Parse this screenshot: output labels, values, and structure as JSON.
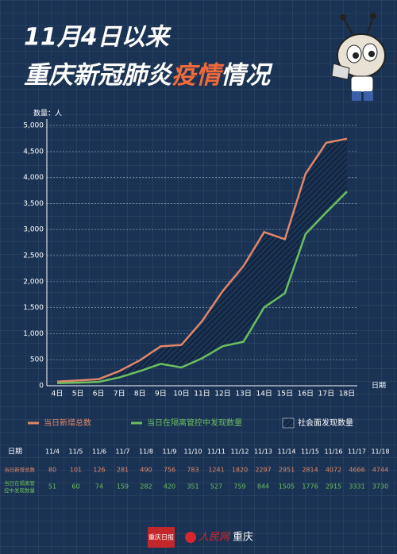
{
  "title_line1": "11月4日以来",
  "title_line2": [
    "重庆新冠肺炎",
    "疫情",
    "情况"
  ],
  "chart_data": {
    "type": "line",
    "y_label": "数量：人",
    "x_label": "日期",
    "categories": [
      "4日",
      "5日",
      "6日",
      "7日",
      "8日",
      "9日",
      "10日",
      "11日",
      "12日",
      "13日",
      "14日",
      "15日",
      "16日",
      "17日",
      "18日"
    ],
    "series": [
      {
        "name": "当日新增总数",
        "color": "#e0876a",
        "values": [
          80,
          101,
          126,
          281,
          490,
          756,
          783,
          1241,
          1820,
          2297,
          2951,
          2814,
          4072,
          4666,
          4744
        ]
      },
      {
        "name": "当日在隔离管控中发现数量",
        "color": "#6cbf5f",
        "values": [
          51,
          60,
          74,
          159,
          282,
          420,
          351,
          527,
          759,
          844,
          1505,
          1776,
          2915,
          3331,
          3730
        ]
      }
    ],
    "area_name": "社会面发现数量",
    "ylim": [
      0,
      5000
    ],
    "yticks": [
      0,
      500,
      {
        "value": 1000,
        "label": "1,000"
      },
      {
        "value": 1500,
        "label": "1,500"
      },
      {
        "value": 2000,
        "label": "2,000"
      },
      {
        "value": 2500,
        "label": "2,500"
      },
      {
        "value": 3000,
        "label": "3,000"
      },
      {
        "value": 3500,
        "label": "3,500"
      },
      {
        "value": 4000,
        "label": "4,000"
      },
      {
        "value": 4500,
        "label": "4,500"
      },
      {
        "value": 5000,
        "label": "5,000"
      }
    ],
    "grid": true
  },
  "table": {
    "dates": [
      "11/4",
      "11/5",
      "11/6",
      "11/7",
      "11/8",
      "11/9",
      "11/10",
      "11/11",
      "11/12",
      "11/13",
      "11/14",
      "11/15",
      "11/16",
      "11/17",
      "11/18"
    ]
  },
  "footer": {
    "logo_left": "重庆日报",
    "logo_mid": "人民网",
    "logo_right": "重庆"
  }
}
